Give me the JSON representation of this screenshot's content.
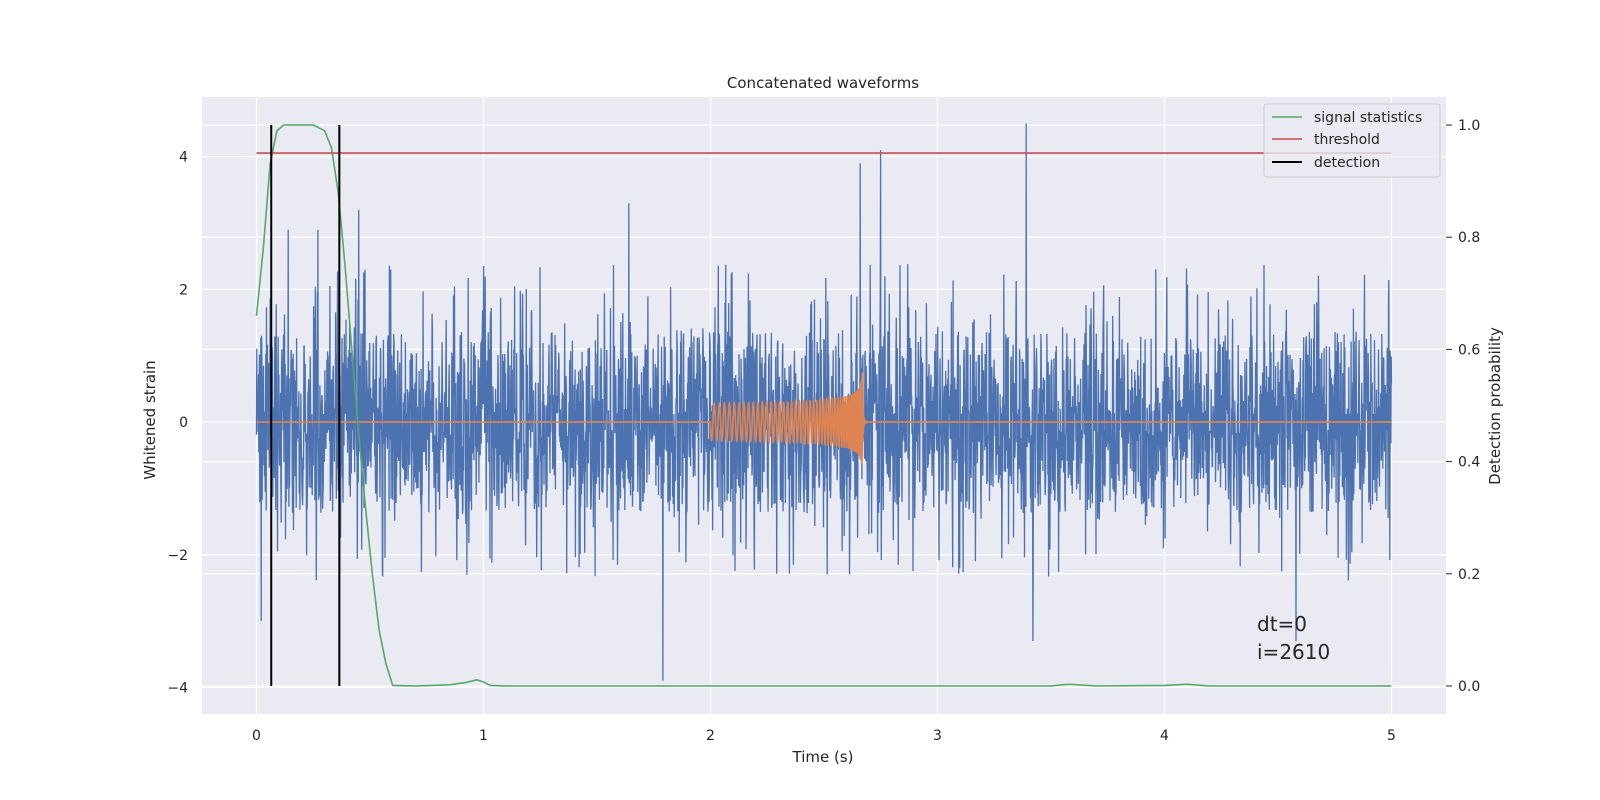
{
  "chart_data": {
    "type": "line",
    "title": "Concatenated waveforms",
    "xlabel": "Time (s)",
    "ylabel": "Whitened strain",
    "y2label": "Detection probability",
    "xlim": [
      -0.24,
      5.24
    ],
    "ylim": [
      -4.4,
      4.9
    ],
    "y2lim": [
      -0.05,
      1.05
    ],
    "xticks": [
      0,
      1,
      2,
      3,
      4,
      5
    ],
    "yticks": [
      -4,
      -2,
      0,
      2,
      4
    ],
    "y2ticks": [
      0.0,
      0.2,
      0.4,
      0.6,
      0.8,
      1.0
    ],
    "xtick_labels": [
      "0",
      "1",
      "2",
      "3",
      "4",
      "5"
    ],
    "ytick_labels": [
      "−4",
      "−2",
      "0",
      "2",
      "4"
    ],
    "y2tick_labels": [
      "0.0",
      "0.2",
      "0.4",
      "0.6",
      "0.8",
      "1.0"
    ],
    "grid": true,
    "legend_position": "top-right",
    "colors": {
      "strain": "#4c72b0",
      "injection": "#dd8452",
      "signal_statistics": "#55a868",
      "threshold": "#c44e52",
      "detection": "#000000",
      "plot_bg": "#eaeaf2",
      "grid": "#ffffff"
    },
    "series": [
      {
        "name": "signal statistics",
        "axis": "right",
        "x": [
          0.0,
          0.03,
          0.06,
          0.09,
          0.12,
          0.15,
          0.2,
          0.25,
          0.3,
          0.33,
          0.36,
          0.39,
          0.42,
          0.45,
          0.48,
          0.51,
          0.54,
          0.57,
          0.6,
          0.7,
          0.85,
          0.92,
          0.97,
          1.0,
          1.03,
          1.1,
          1.5,
          2.0,
          2.5,
          3.0,
          3.5,
          3.55,
          3.58,
          3.62,
          3.7,
          4.0,
          4.1,
          4.13,
          4.2,
          4.5,
          5.0
        ],
        "y": [
          0.66,
          0.78,
          0.93,
          0.99,
          1.0,
          1.0,
          1.0,
          1.0,
          0.99,
          0.96,
          0.88,
          0.75,
          0.6,
          0.45,
          0.32,
          0.2,
          0.1,
          0.04,
          0.001,
          0.0,
          0.002,
          0.006,
          0.011,
          0.007,
          0.001,
          0.0,
          0.0,
          0.0,
          0.0,
          0.0,
          0.0,
          0.002,
          0.003,
          0.002,
          0.0,
          0.001,
          0.003,
          0.002,
          0.0,
          0.0,
          0.0
        ]
      },
      {
        "name": "threshold",
        "axis": "right",
        "x": [
          0,
          5
        ],
        "y": [
          0.95,
          0.95
        ]
      },
      {
        "name": "detection",
        "axis": "right",
        "x": [
          0.065,
          0.365
        ],
        "y": [
          0.0,
          1.0
        ]
      }
    ],
    "strain": {
      "axis": "left",
      "x_range": [
        0,
        5
      ],
      "typical_band": [
        -1.2,
        1.3
      ],
      "notable_peaks": [
        {
          "x": 0.14,
          "y": 2.9
        },
        {
          "x": 0.27,
          "y": 2.9
        },
        {
          "x": 0.45,
          "y": 3.2
        },
        {
          "x": 1.64,
          "y": 3.3
        },
        {
          "x": 2.66,
          "y": 3.9
        },
        {
          "x": 2.75,
          "y": 4.1
        },
        {
          "x": 3.39,
          "y": 4.5
        },
        {
          "x": 1.79,
          "y": -3.9
        },
        {
          "x": 0.02,
          "y": -3.0
        },
        {
          "x": 3.42,
          "y": -3.3
        },
        {
          "x": 4.58,
          "y": -3.3
        }
      ]
    },
    "injection": {
      "axis": "left",
      "chirp_start": 2.0,
      "merger_time": 2.67,
      "peak_amplitude": 0.75,
      "start_amplitude": 0.12
    },
    "annotations": [
      "dt=0",
      "i=2610"
    ]
  }
}
